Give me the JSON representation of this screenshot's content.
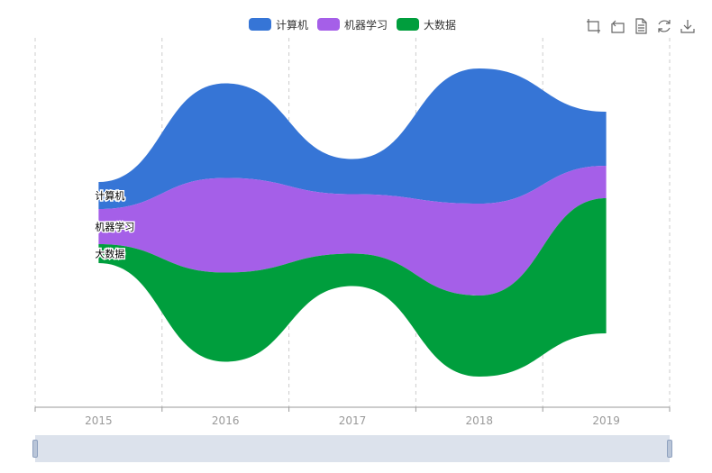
{
  "colors": {
    "series": [
      "#3675d6",
      "#a55fe8",
      "#009e3d"
    ],
    "grid": "#cccccc",
    "axis": "#999999"
  },
  "legend": {
    "items": [
      {
        "label": "计算机",
        "color": "#3675d6"
      },
      {
        "label": "机器学习",
        "color": "#a55fe8"
      },
      {
        "label": "大数据",
        "color": "#009e3d"
      }
    ]
  },
  "toolbox": {
    "icons": [
      "zoom-area-icon",
      "zoom-reset-icon",
      "data-view-icon",
      "restore-icon",
      "save-image-icon"
    ]
  },
  "chart_data": {
    "type": "area",
    "subtype": "themeRiver",
    "categories": [
      "2015",
      "2016",
      "2017",
      "2018",
      "2019"
    ],
    "series": [
      {
        "name": "计算机",
        "values": [
          10,
          35,
          13,
          50,
          20
        ]
      },
      {
        "name": "机器学习",
        "values": [
          13,
          35,
          22,
          34,
          12
        ]
      },
      {
        "name": "大数据",
        "values": [
          7,
          33,
          12,
          30,
          50
        ]
      }
    ],
    "legend_position": "top-center",
    "grid": "vertical-dashed"
  }
}
